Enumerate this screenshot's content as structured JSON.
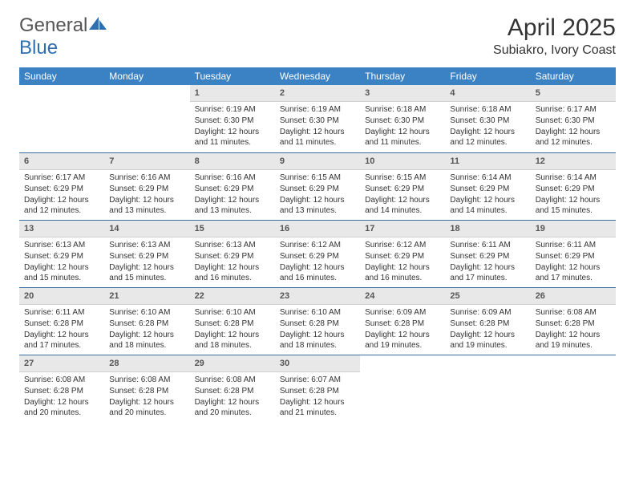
{
  "brand": {
    "name_part1": "General",
    "name_part2": "Blue"
  },
  "title": "April 2025",
  "location": "Subiakro, Ivory Coast",
  "colors": {
    "header_bg": "#3b82c4",
    "header_text": "#ffffff",
    "daynum_bg": "#e8e8e8",
    "daynum_text": "#555555",
    "row_sep": "#3b6fa0",
    "body_text": "#333333",
    "logo_blue": "#2f6fb0"
  },
  "dayNames": [
    "Sunday",
    "Monday",
    "Tuesday",
    "Wednesday",
    "Thursday",
    "Friday",
    "Saturday"
  ],
  "label_sunrise": "Sunrise: ",
  "label_sunset": "Sunset: ",
  "label_daylight": "Daylight: ",
  "grid": {
    "first_weekday_index": 2,
    "days_in_month": 30
  },
  "days": {
    "1": {
      "sunrise": "6:19 AM",
      "sunset": "6:30 PM",
      "daylight": "12 hours and 11 minutes."
    },
    "2": {
      "sunrise": "6:19 AM",
      "sunset": "6:30 PM",
      "daylight": "12 hours and 11 minutes."
    },
    "3": {
      "sunrise": "6:18 AM",
      "sunset": "6:30 PM",
      "daylight": "12 hours and 11 minutes."
    },
    "4": {
      "sunrise": "6:18 AM",
      "sunset": "6:30 PM",
      "daylight": "12 hours and 12 minutes."
    },
    "5": {
      "sunrise": "6:17 AM",
      "sunset": "6:30 PM",
      "daylight": "12 hours and 12 minutes."
    },
    "6": {
      "sunrise": "6:17 AM",
      "sunset": "6:29 PM",
      "daylight": "12 hours and 12 minutes."
    },
    "7": {
      "sunrise": "6:16 AM",
      "sunset": "6:29 PM",
      "daylight": "12 hours and 13 minutes."
    },
    "8": {
      "sunrise": "6:16 AM",
      "sunset": "6:29 PM",
      "daylight": "12 hours and 13 minutes."
    },
    "9": {
      "sunrise": "6:15 AM",
      "sunset": "6:29 PM",
      "daylight": "12 hours and 13 minutes."
    },
    "10": {
      "sunrise": "6:15 AM",
      "sunset": "6:29 PM",
      "daylight": "12 hours and 14 minutes."
    },
    "11": {
      "sunrise": "6:14 AM",
      "sunset": "6:29 PM",
      "daylight": "12 hours and 14 minutes."
    },
    "12": {
      "sunrise": "6:14 AM",
      "sunset": "6:29 PM",
      "daylight": "12 hours and 15 minutes."
    },
    "13": {
      "sunrise": "6:13 AM",
      "sunset": "6:29 PM",
      "daylight": "12 hours and 15 minutes."
    },
    "14": {
      "sunrise": "6:13 AM",
      "sunset": "6:29 PM",
      "daylight": "12 hours and 15 minutes."
    },
    "15": {
      "sunrise": "6:13 AM",
      "sunset": "6:29 PM",
      "daylight": "12 hours and 16 minutes."
    },
    "16": {
      "sunrise": "6:12 AM",
      "sunset": "6:29 PM",
      "daylight": "12 hours and 16 minutes."
    },
    "17": {
      "sunrise": "6:12 AM",
      "sunset": "6:29 PM",
      "daylight": "12 hours and 16 minutes."
    },
    "18": {
      "sunrise": "6:11 AM",
      "sunset": "6:29 PM",
      "daylight": "12 hours and 17 minutes."
    },
    "19": {
      "sunrise": "6:11 AM",
      "sunset": "6:29 PM",
      "daylight": "12 hours and 17 minutes."
    },
    "20": {
      "sunrise": "6:11 AM",
      "sunset": "6:28 PM",
      "daylight": "12 hours and 17 minutes."
    },
    "21": {
      "sunrise": "6:10 AM",
      "sunset": "6:28 PM",
      "daylight": "12 hours and 18 minutes."
    },
    "22": {
      "sunrise": "6:10 AM",
      "sunset": "6:28 PM",
      "daylight": "12 hours and 18 minutes."
    },
    "23": {
      "sunrise": "6:10 AM",
      "sunset": "6:28 PM",
      "daylight": "12 hours and 18 minutes."
    },
    "24": {
      "sunrise": "6:09 AM",
      "sunset": "6:28 PM",
      "daylight": "12 hours and 19 minutes."
    },
    "25": {
      "sunrise": "6:09 AM",
      "sunset": "6:28 PM",
      "daylight": "12 hours and 19 minutes."
    },
    "26": {
      "sunrise": "6:08 AM",
      "sunset": "6:28 PM",
      "daylight": "12 hours and 19 minutes."
    },
    "27": {
      "sunrise": "6:08 AM",
      "sunset": "6:28 PM",
      "daylight": "12 hours and 20 minutes."
    },
    "28": {
      "sunrise": "6:08 AM",
      "sunset": "6:28 PM",
      "daylight": "12 hours and 20 minutes."
    },
    "29": {
      "sunrise": "6:08 AM",
      "sunset": "6:28 PM",
      "daylight": "12 hours and 20 minutes."
    },
    "30": {
      "sunrise": "6:07 AM",
      "sunset": "6:28 PM",
      "daylight": "12 hours and 21 minutes."
    }
  }
}
